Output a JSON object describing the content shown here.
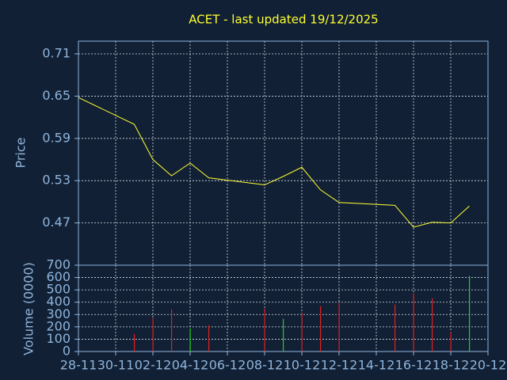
{
  "chart_data": [
    {
      "type": "line",
      "title": "ACET - last updated 19/12/2025",
      "y_label": "Price",
      "x": [
        "28-11",
        "01-12",
        "02-12",
        "03-12",
        "04-12",
        "05-12",
        "08-12",
        "09-12",
        "10-12",
        "11-12",
        "12-12",
        "15-12",
        "16-12",
        "17-12",
        "18-12",
        "19-12"
      ],
      "series": [
        {
          "color": "#ffff33",
          "values": [
            0.648,
            0.61,
            0.56,
            0.537,
            0.555,
            0.534,
            0.524,
            0.536,
            0.549,
            0.517,
            0.499,
            0.495,
            0.464,
            0.471,
            0.47,
            0.494
          ]
        }
      ],
      "xlim": [
        "28-11",
        "20-12"
      ],
      "xticks": [
        "28-11",
        "30-11",
        "02-12",
        "04-12",
        "06-12",
        "08-12",
        "10-12",
        "12-12",
        "14-12",
        "16-12",
        "18-12",
        "20-12"
      ],
      "ylim": [
        0.41,
        0.728
      ],
      "yticks": [
        0.47,
        0.53,
        0.59,
        0.65,
        0.71
      ],
      "grid": true
    },
    {
      "type": "bar",
      "y_label": "Volume (0000)",
      "x": [
        "28-11",
        "01-12",
        "02-12",
        "03-12",
        "04-12",
        "05-12",
        "08-12",
        "09-12",
        "10-12",
        "11-12",
        "12-12",
        "15-12",
        "16-12",
        "17-12",
        "18-12",
        "19-12"
      ],
      "values": [
        null,
        142,
        271,
        342,
        187,
        213,
        348,
        265,
        310,
        368,
        394,
        381,
        471,
        432,
        161,
        613
      ],
      "colors": [
        null,
        "#e02020",
        "#e02020",
        "#e02020",
        "#20d020",
        "#e02020",
        "#e02020",
        "#20d020",
        "#e02020",
        "#e02020",
        "#e02020",
        "#e02020",
        "#e02020",
        "#e02020",
        "#e02020",
        "#20d020"
      ],
      "xlim": [
        "28-11",
        "20-12"
      ],
      "xticks": [
        "28-11",
        "30-11",
        "02-12",
        "04-12",
        "06-12",
        "08-12",
        "10-12",
        "12-12",
        "14-12",
        "16-12",
        "18-12",
        "20-12"
      ],
      "ylim": [
        0,
        700
      ],
      "yticks": [
        0,
        100,
        200,
        300,
        400,
        500,
        600,
        700
      ],
      "grid": true
    }
  ]
}
